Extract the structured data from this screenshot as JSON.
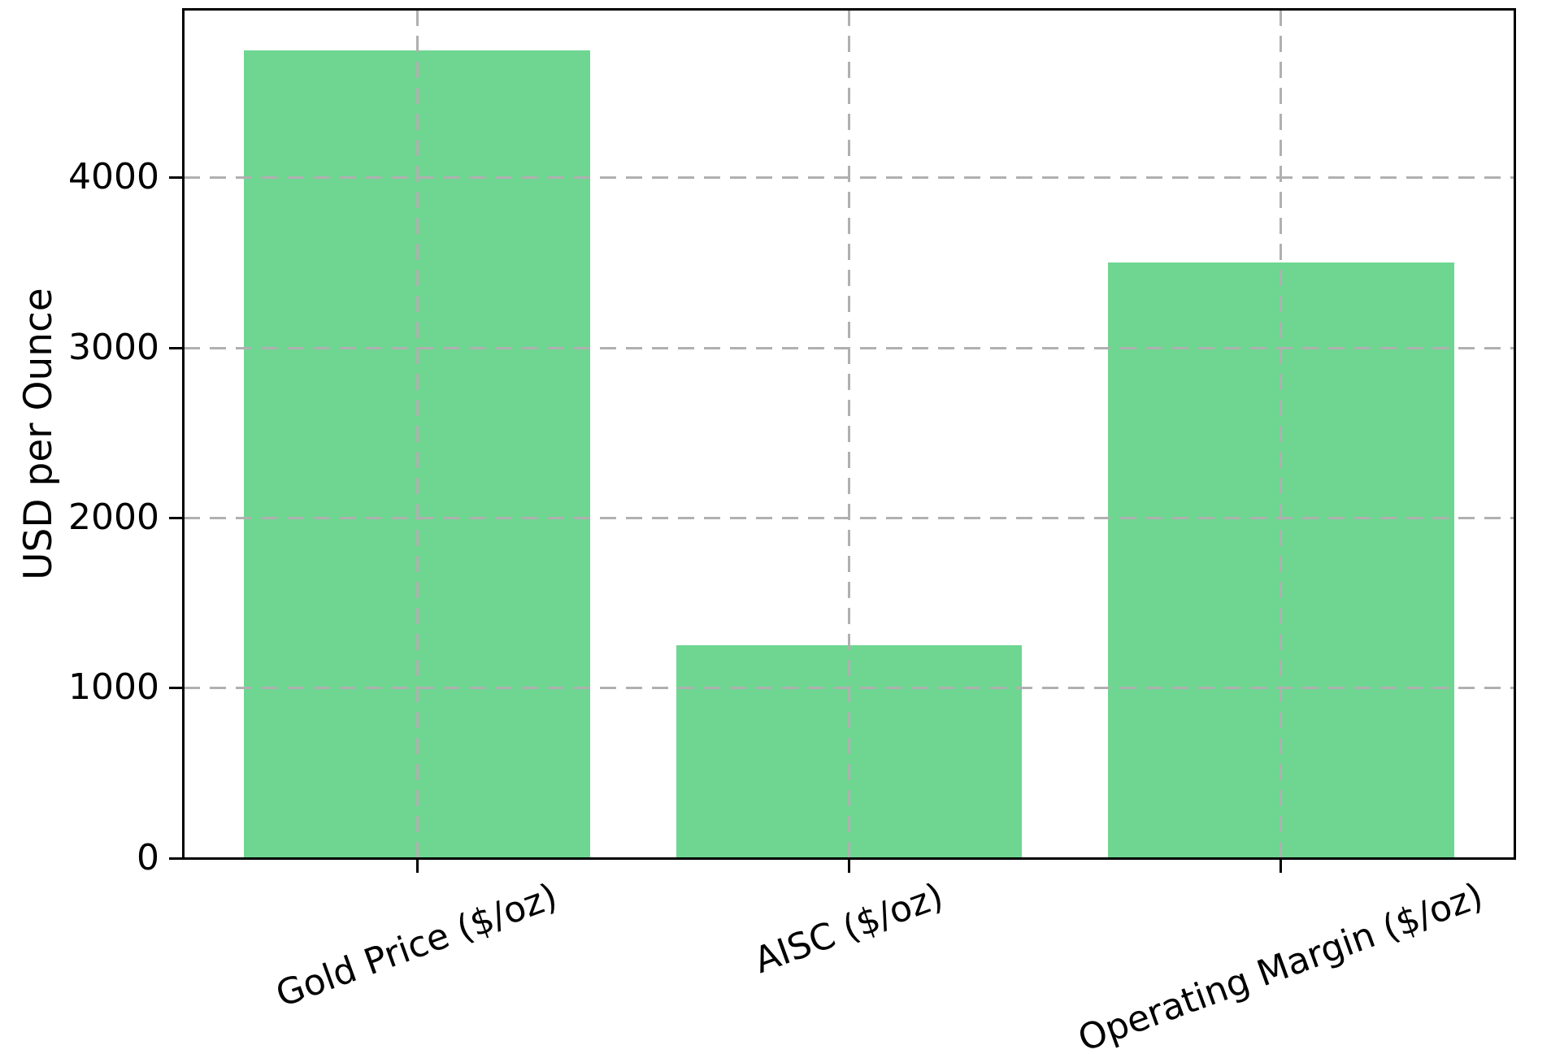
{
  "chart_data": {
    "type": "bar",
    "categories": [
      "Gold Price ($/oz)",
      "AISC ($/oz)",
      "Operating Margin ($/oz)"
    ],
    "values": [
      4750,
      1250,
      3500
    ],
    "positions": [
      0,
      1,
      2
    ],
    "series_name": "USD per Ounce",
    "xlabel": "",
    "ylabel": "USD per Ounce",
    "yticks": [
      0,
      1000,
      2000,
      3000,
      4000
    ],
    "ytick_labels": [
      "0",
      "1000",
      "2000",
      "3000",
      "4000"
    ],
    "ylim": [
      0,
      4987.5
    ],
    "xlim": [
      -0.54,
      2.54
    ],
    "bar_width": 0.8,
    "bar_color": "#6ed691",
    "grid": {
      "visible": true,
      "line_style": "dashed",
      "color": "#b0b0b0",
      "above_bars": true
    },
    "axis_color": "#000000",
    "text_color": "#000000",
    "xtick_rotation_deg": 20,
    "legend": {
      "visible": false
    }
  }
}
